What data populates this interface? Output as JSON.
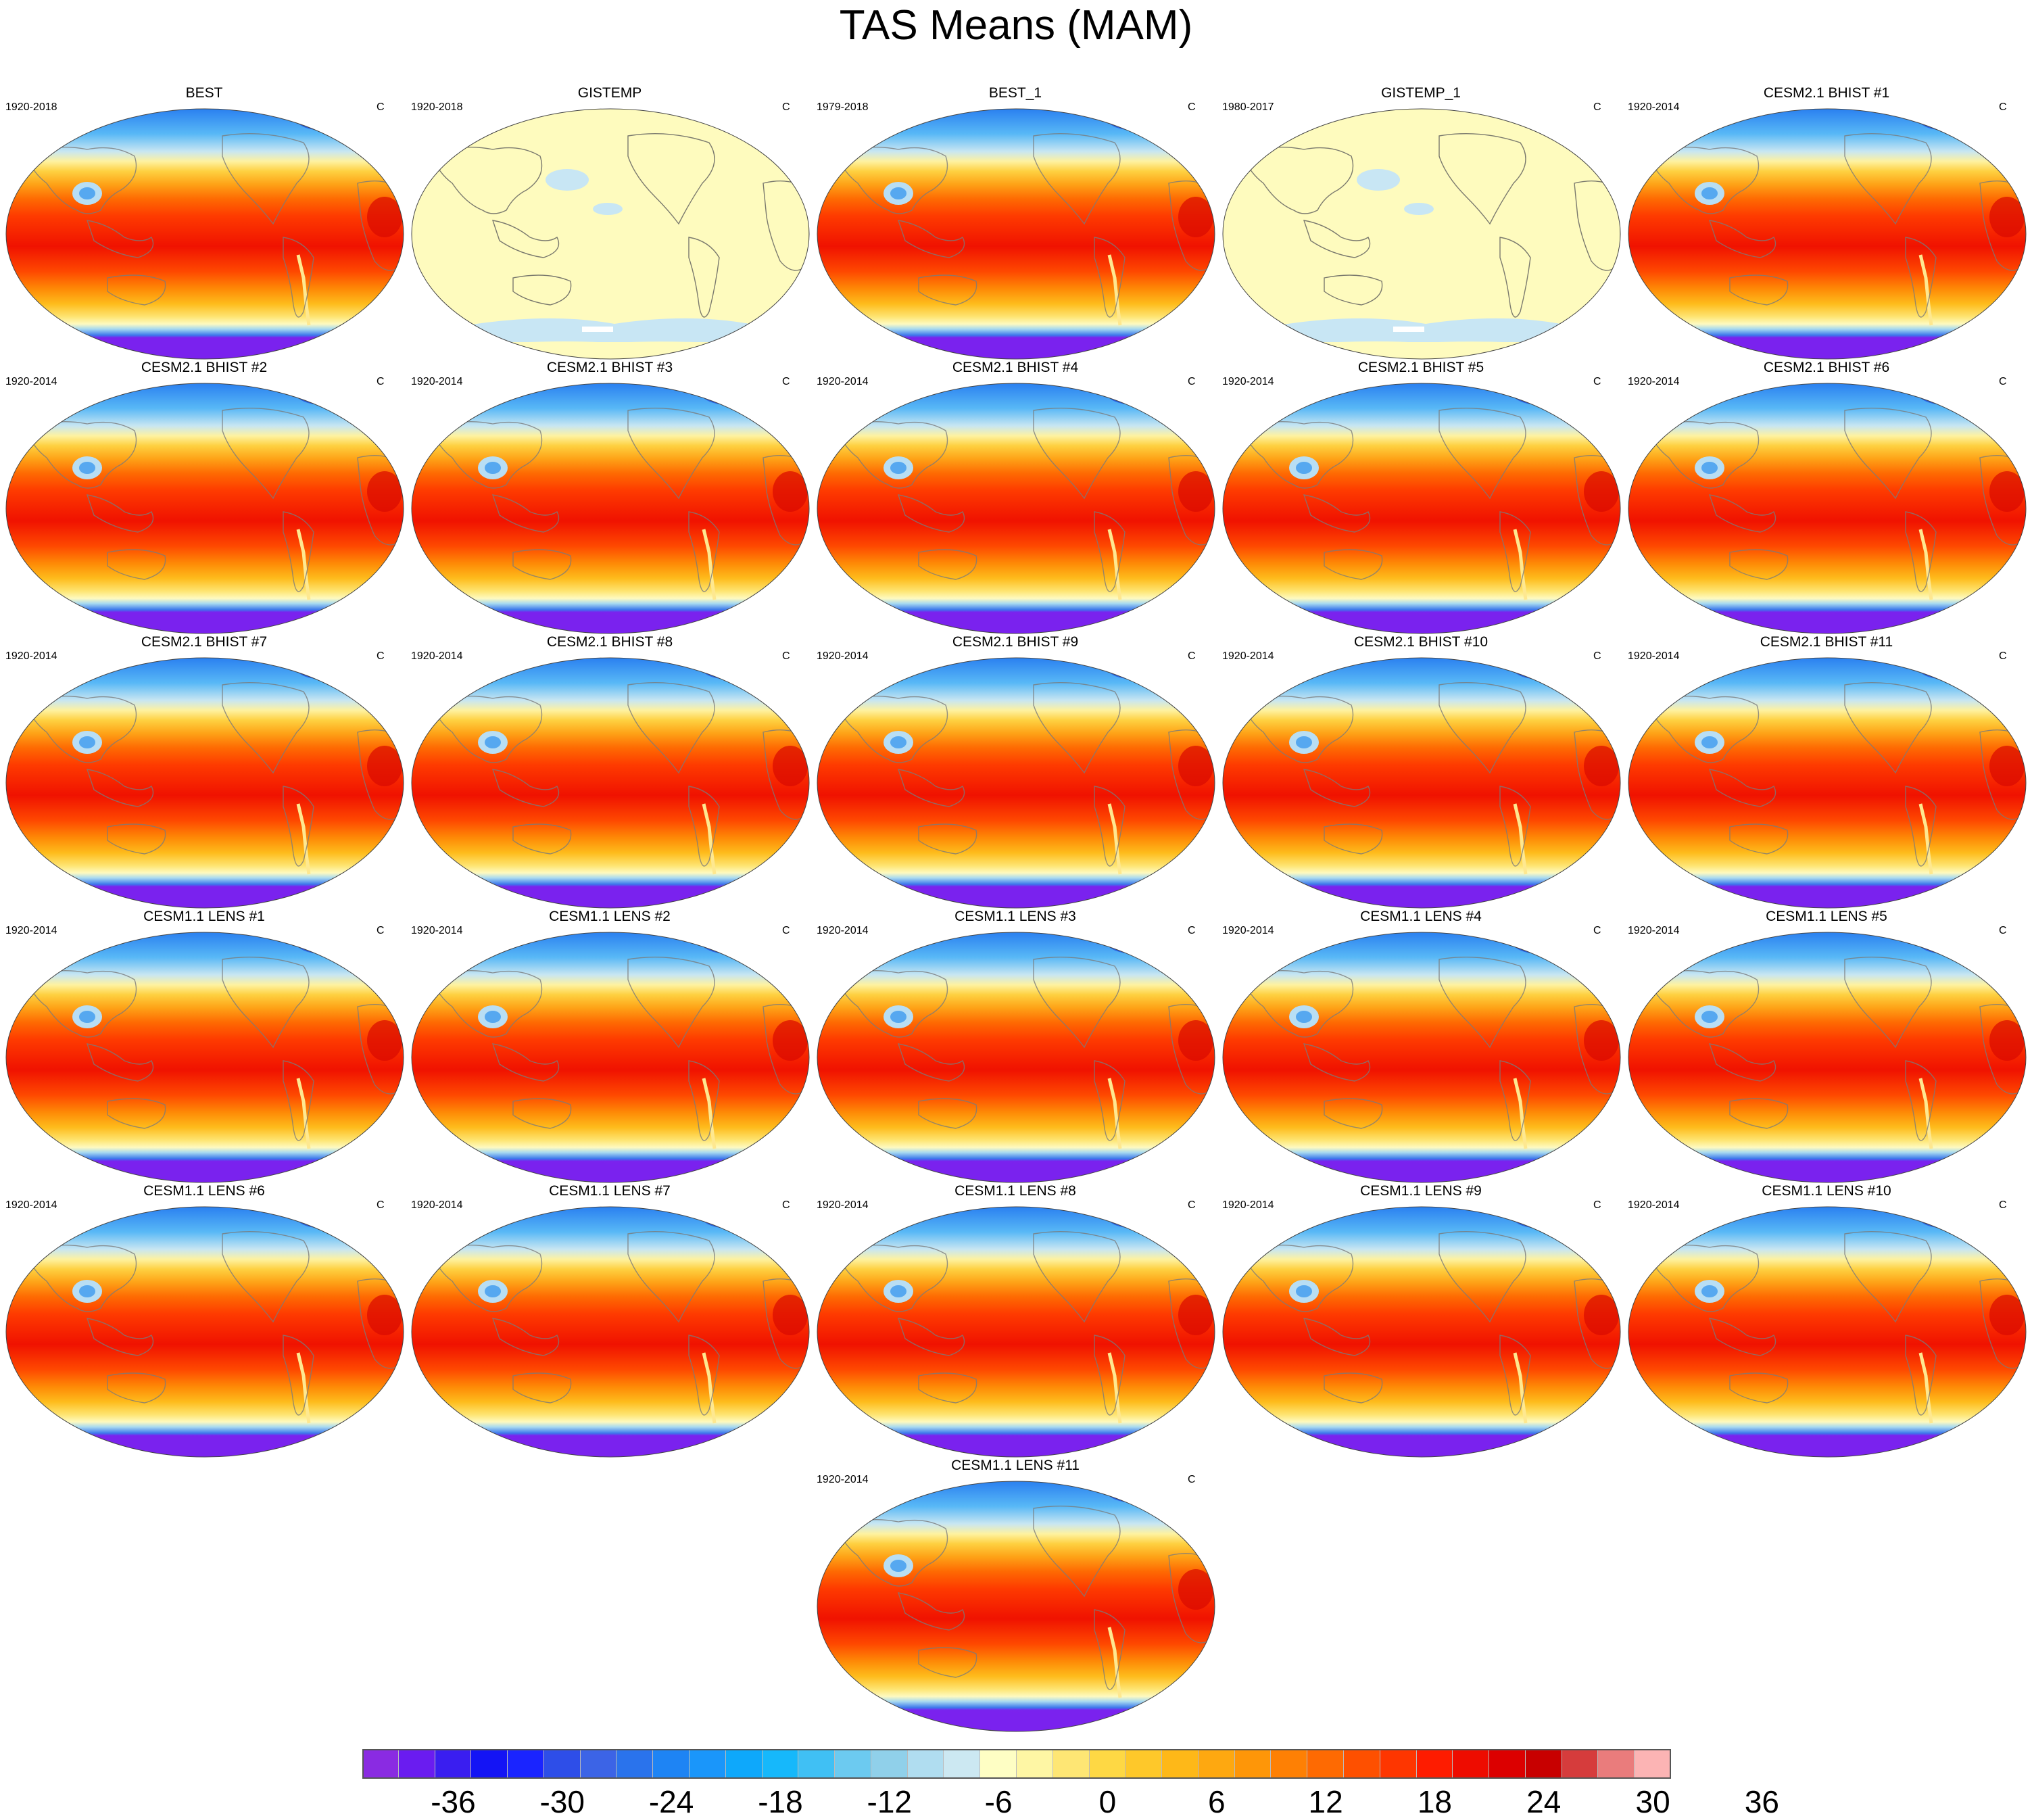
{
  "figure_title": "TAS Means (MAM)",
  "chart_data": {
    "type": "heatmap",
    "title": "TAS Means (MAM)",
    "variable": "TAS",
    "units": "C",
    "colorbar": {
      "tick_labels": [
        "-36",
        "-30",
        "-24",
        "-18",
        "-12",
        "-6",
        "0",
        "6",
        "12",
        "18",
        "24",
        "30",
        "36"
      ],
      "colors": [
        "#8a2be2",
        "#6a1cf0",
        "#3a1ef0",
        "#1414f5",
        "#1a24ff",
        "#2e4ee8",
        "#3c64e6",
        "#2a73ec",
        "#1e84f4",
        "#1a96fa",
        "#0ea8fb",
        "#16b8fb",
        "#40c0f4",
        "#6ccaf0",
        "#90d0ea",
        "#b0ddf0",
        "#cce8f2",
        "#fefec4",
        "#fef6a4",
        "#fee674",
        "#fed844",
        "#fec82a",
        "#feb818",
        "#fea810",
        "#fe9608",
        "#fe8004",
        "#fe6a02",
        "#fe5000",
        "#fe3600",
        "#fe1c00",
        "#ee0c00",
        "#dc0000",
        "#c80000",
        "#d63c3c",
        "#ea7c7c",
        "#fcb4b4"
      ]
    },
    "panels": [
      {
        "title": "BEST",
        "period": "1920-2018",
        "units": "C",
        "kind": "temp"
      },
      {
        "title": "GISTEMP",
        "period": "1920-2018",
        "units": "C",
        "kind": "gis"
      },
      {
        "title": "BEST_1",
        "period": "1979-2018",
        "units": "C",
        "kind": "temp"
      },
      {
        "title": "GISTEMP_1",
        "period": "1980-2017",
        "units": "C",
        "kind": "gis"
      },
      {
        "title": "CESM2.1 BHIST #1",
        "period": "1920-2014",
        "units": "C",
        "kind": "temp"
      },
      {
        "title": "CESM2.1 BHIST #2",
        "period": "1920-2014",
        "units": "C",
        "kind": "temp"
      },
      {
        "title": "CESM2.1 BHIST #3",
        "period": "1920-2014",
        "units": "C",
        "kind": "temp"
      },
      {
        "title": "CESM2.1 BHIST #4",
        "period": "1920-2014",
        "units": "C",
        "kind": "temp"
      },
      {
        "title": "CESM2.1 BHIST #5",
        "period": "1920-2014",
        "units": "C",
        "kind": "temp"
      },
      {
        "title": "CESM2.1 BHIST #6",
        "period": "1920-2014",
        "units": "C",
        "kind": "temp"
      },
      {
        "title": "CESM2.1 BHIST #7",
        "period": "1920-2014",
        "units": "C",
        "kind": "temp"
      },
      {
        "title": "CESM2.1 BHIST #8",
        "period": "1920-2014",
        "units": "C",
        "kind": "temp"
      },
      {
        "title": "CESM2.1 BHIST #9",
        "period": "1920-2014",
        "units": "C",
        "kind": "temp"
      },
      {
        "title": "CESM2.1 BHIST #10",
        "period": "1920-2014",
        "units": "C",
        "kind": "temp"
      },
      {
        "title": "CESM2.1 BHIST #11",
        "period": "1920-2014",
        "units": "C",
        "kind": "temp"
      },
      {
        "title": "CESM1.1 LENS #1",
        "period": "1920-2014",
        "units": "C",
        "kind": "temp"
      },
      {
        "title": "CESM1.1 LENS #2",
        "period": "1920-2014",
        "units": "C",
        "kind": "temp"
      },
      {
        "title": "CESM1.1 LENS #3",
        "period": "1920-2014",
        "units": "C",
        "kind": "temp"
      },
      {
        "title": "CESM1.1 LENS #4",
        "period": "1920-2014",
        "units": "C",
        "kind": "temp"
      },
      {
        "title": "CESM1.1 LENS #5",
        "period": "1920-2014",
        "units": "C",
        "kind": "temp"
      },
      {
        "title": "CESM1.1 LENS #6",
        "period": "1920-2014",
        "units": "C",
        "kind": "temp"
      },
      {
        "title": "CESM1.1 LENS #7",
        "period": "1920-2014",
        "units": "C",
        "kind": "temp"
      },
      {
        "title": "CESM1.1 LENS #8",
        "period": "1920-2014",
        "units": "C",
        "kind": "temp"
      },
      {
        "title": "CESM1.1 LENS #9",
        "period": "1920-2014",
        "units": "C",
        "kind": "temp"
      },
      {
        "title": "CESM1.1 LENS #10",
        "period": "1920-2014",
        "units": "C",
        "kind": "temp"
      },
      {
        "title": "CESM1.1 LENS #11",
        "period": "1920-2014",
        "units": "C",
        "kind": "temp"
      }
    ]
  }
}
